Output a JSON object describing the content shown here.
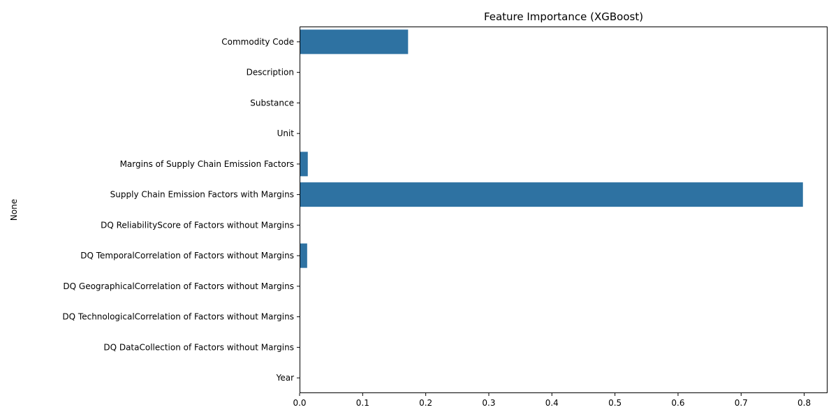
{
  "chart_data": {
    "type": "bar",
    "orientation": "horizontal",
    "title": "Feature Importance (XGBoost)",
    "xlabel": "",
    "ylabel": "None",
    "xlim": [
      0,
      0.837
    ],
    "x_ticks": [
      "0.0",
      "0.1",
      "0.2",
      "0.3",
      "0.4",
      "0.5",
      "0.6",
      "0.7",
      "0.8"
    ],
    "grid": false,
    "legend": "none",
    "bar_color": "#2e72a2",
    "categories": [
      "Commodity Code",
      "Description",
      "Substance",
      "Unit",
      "Margins of Supply Chain Emission Factors",
      "Supply Chain Emission Factors with Margins",
      "DQ ReliabilityScore of Factors without Margins",
      "DQ TemporalCorrelation of Factors without Margins",
      "DQ GeographicalCorrelation of Factors without Margins",
      "DQ TechnologicalCorrelation of Factors without Margins",
      "DQ DataCollection of Factors without Margins",
      "Year"
    ],
    "values": [
      0.172,
      0.0,
      0.0,
      0.0,
      0.013,
      0.798,
      0.0,
      0.012,
      0.0,
      0.0,
      0.0,
      0.0
    ]
  }
}
